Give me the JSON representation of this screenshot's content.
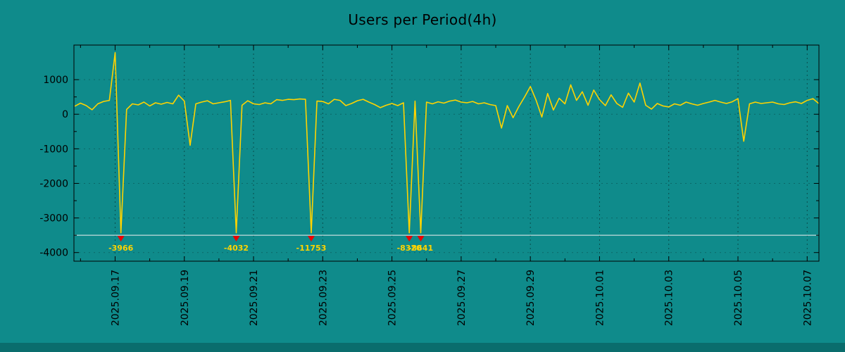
{
  "page": {
    "background_color": "#0f8b8b",
    "bottom_bar_color": "#0a6d6d"
  },
  "chart_data": {
    "type": "line",
    "title": "Users per Period(4h)",
    "xlabel": "",
    "ylabel": "",
    "legend": false,
    "grid": true,
    "line_color": "#ffd300",
    "annotation_color": "#ffd300",
    "marker_color": "#ee0000",
    "axis_color": "#000000",
    "xlim": [
      0.81,
      22.34
    ],
    "ylim": [
      -4250,
      2000
    ],
    "clip_min": -3430,
    "threshold": {
      "value": -3500,
      "color": "#f0f0f0"
    },
    "x_ticks": [
      {
        "day": 2,
        "label": "2025.09.17"
      },
      {
        "day": 4,
        "label": "2025.09.19"
      },
      {
        "day": 6,
        "label": "2025.09.21"
      },
      {
        "day": 8,
        "label": "2025.09.23"
      },
      {
        "day": 10,
        "label": "2025.09.25"
      },
      {
        "day": 12,
        "label": "2025.09.27"
      },
      {
        "day": 14,
        "label": "2025.09.29"
      },
      {
        "day": 16,
        "label": "2025.10.01"
      },
      {
        "day": 18,
        "label": "2025.10.03"
      },
      {
        "day": 20,
        "label": "2025.10.05"
      },
      {
        "day": 22,
        "label": "2025.10.07"
      }
    ],
    "y_ticks": [
      {
        "value": 1000,
        "label": "1000"
      },
      {
        "value": 0,
        "label": "0"
      },
      {
        "value": -1000,
        "label": "-1000"
      },
      {
        "value": -2000,
        "label": "-2000"
      },
      {
        "value": -3000,
        "label": "-3000"
      },
      {
        "value": -4000,
        "label": "-4000"
      }
    ],
    "annotations": [
      {
        "day": 2.167,
        "label": "-3966"
      },
      {
        "day": 5.5,
        "label": "-4032"
      },
      {
        "day": 7.667,
        "label": "-11753"
      },
      {
        "day": 10.5,
        "label": "-8320"
      },
      {
        "day": 10.833,
        "label": "-8641"
      }
    ],
    "series": [
      {
        "name": "users",
        "points": [
          [
            0.833,
            230
          ],
          [
            1.0,
            320
          ],
          [
            1.167,
            250
          ],
          [
            1.333,
            130
          ],
          [
            1.5,
            300
          ],
          [
            1.667,
            370
          ],
          [
            1.833,
            400
          ],
          [
            2.0,
            1780
          ],
          [
            2.167,
            -3966
          ],
          [
            2.333,
            140
          ],
          [
            2.5,
            300
          ],
          [
            2.667,
            270
          ],
          [
            2.833,
            350
          ],
          [
            3.0,
            240
          ],
          [
            3.167,
            330
          ],
          [
            3.333,
            290
          ],
          [
            3.5,
            340
          ],
          [
            3.667,
            300
          ],
          [
            3.833,
            550
          ],
          [
            4.0,
            380
          ],
          [
            4.167,
            -900
          ],
          [
            4.333,
            300
          ],
          [
            4.5,
            350
          ],
          [
            4.667,
            390
          ],
          [
            4.833,
            300
          ],
          [
            5.0,
            330
          ],
          [
            5.167,
            360
          ],
          [
            5.333,
            400
          ],
          [
            5.5,
            -4032
          ],
          [
            5.667,
            260
          ],
          [
            5.833,
            390
          ],
          [
            6.0,
            300
          ],
          [
            6.167,
            280
          ],
          [
            6.333,
            330
          ],
          [
            6.5,
            300
          ],
          [
            6.667,
            420
          ],
          [
            6.833,
            400
          ],
          [
            7.0,
            430
          ],
          [
            7.167,
            420
          ],
          [
            7.333,
            440
          ],
          [
            7.5,
            430
          ],
          [
            7.667,
            -11753
          ],
          [
            7.833,
            380
          ],
          [
            8.0,
            370
          ],
          [
            8.167,
            300
          ],
          [
            8.333,
            430
          ],
          [
            8.5,
            400
          ],
          [
            8.667,
            250
          ],
          [
            8.833,
            310
          ],
          [
            9.0,
            390
          ],
          [
            9.167,
            430
          ],
          [
            9.333,
            350
          ],
          [
            9.5,
            280
          ],
          [
            9.667,
            190
          ],
          [
            9.833,
            260
          ],
          [
            10.0,
            310
          ],
          [
            10.167,
            250
          ],
          [
            10.333,
            330
          ],
          [
            10.5,
            -8320
          ],
          [
            10.667,
            380
          ],
          [
            10.833,
            -8641
          ],
          [
            11.0,
            350
          ],
          [
            11.167,
            300
          ],
          [
            11.333,
            360
          ],
          [
            11.5,
            320
          ],
          [
            11.667,
            380
          ],
          [
            11.833,
            410
          ],
          [
            12.0,
            350
          ],
          [
            12.167,
            330
          ],
          [
            12.333,
            370
          ],
          [
            12.5,
            300
          ],
          [
            12.667,
            330
          ],
          [
            12.833,
            280
          ],
          [
            13.0,
            250
          ],
          [
            13.167,
            -400
          ],
          [
            13.333,
            250
          ],
          [
            13.5,
            -100
          ],
          [
            13.667,
            220
          ],
          [
            13.833,
            500
          ],
          [
            14.0,
            800
          ],
          [
            14.167,
            400
          ],
          [
            14.333,
            -80
          ],
          [
            14.5,
            600
          ],
          [
            14.667,
            120
          ],
          [
            14.833,
            460
          ],
          [
            15.0,
            300
          ],
          [
            15.167,
            850
          ],
          [
            15.333,
            400
          ],
          [
            15.5,
            650
          ],
          [
            15.667,
            260
          ],
          [
            15.833,
            700
          ],
          [
            16.0,
            420
          ],
          [
            16.167,
            250
          ],
          [
            16.333,
            560
          ],
          [
            16.5,
            310
          ],
          [
            16.667,
            200
          ],
          [
            16.833,
            610
          ],
          [
            17.0,
            350
          ],
          [
            17.167,
            900
          ],
          [
            17.333,
            260
          ],
          [
            17.5,
            150
          ],
          [
            17.667,
            310
          ],
          [
            17.833,
            240
          ],
          [
            18.0,
            210
          ],
          [
            18.167,
            300
          ],
          [
            18.333,
            260
          ],
          [
            18.5,
            350
          ],
          [
            18.667,
            300
          ],
          [
            18.833,
            260
          ],
          [
            19.0,
            310
          ],
          [
            19.167,
            350
          ],
          [
            19.333,
            400
          ],
          [
            19.5,
            350
          ],
          [
            19.667,
            310
          ],
          [
            19.833,
            360
          ],
          [
            20.0,
            450
          ],
          [
            20.167,
            -780
          ],
          [
            20.333,
            300
          ],
          [
            20.5,
            350
          ],
          [
            20.667,
            310
          ],
          [
            20.833,
            330
          ],
          [
            21.0,
            350
          ],
          [
            21.167,
            300
          ],
          [
            21.333,
            280
          ],
          [
            21.5,
            330
          ],
          [
            21.667,
            360
          ],
          [
            21.833,
            310
          ],
          [
            22.0,
            400
          ],
          [
            22.167,
            450
          ],
          [
            22.333,
            310
          ]
        ]
      }
    ]
  }
}
